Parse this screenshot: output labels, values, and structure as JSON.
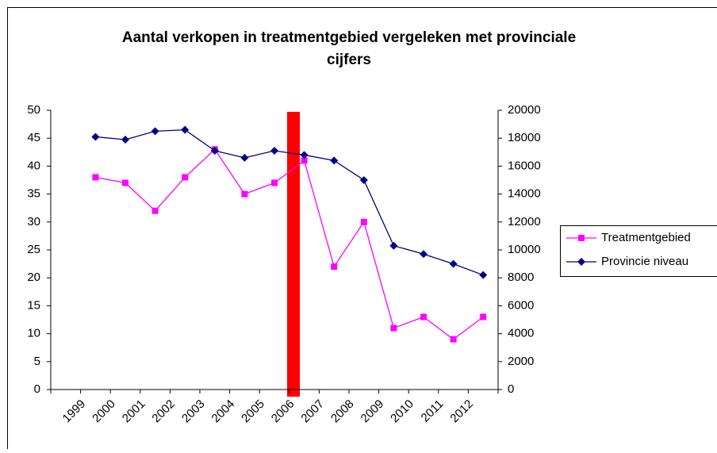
{
  "chart_data": {
    "type": "line",
    "title": [
      "Aantal verkopen in treatmentgebied vergeleken met provinciale",
      "cijfers"
    ],
    "categories": [
      "1999",
      "2000",
      "2001",
      "2002",
      "2003",
      "2004",
      "2005",
      "2006",
      "2007",
      "2008",
      "2009",
      "2010",
      "2011",
      "2012"
    ],
    "series": [
      {
        "name": "Treatmentgebied",
        "color": "#ff00ff",
        "marker": "square",
        "values": [
          38,
          37,
          32,
          38,
          43,
          35,
          37,
          41,
          22,
          30,
          11,
          13,
          9,
          13
        ]
      },
      {
        "name": "Provincie niveau",
        "color": "#000080",
        "marker": "diamond",
        "axis": "y2",
        "values": [
          18100,
          17900,
          18500,
          18600,
          17100,
          16600,
          17100,
          16800,
          16400,
          15000,
          10300,
          9700,
          9000,
          8200
        ]
      }
    ],
    "ylim": [
      0,
      50
    ],
    "yticks": [
      0,
      5,
      10,
      15,
      20,
      25,
      30,
      35,
      40,
      45,
      50
    ],
    "y2lim": [
      0,
      20000
    ],
    "y2ticks": [
      0,
      2000,
      4000,
      6000,
      8000,
      10000,
      12000,
      14000,
      16000,
      18000,
      20000
    ],
    "grid": false,
    "legend": "right"
  }
}
